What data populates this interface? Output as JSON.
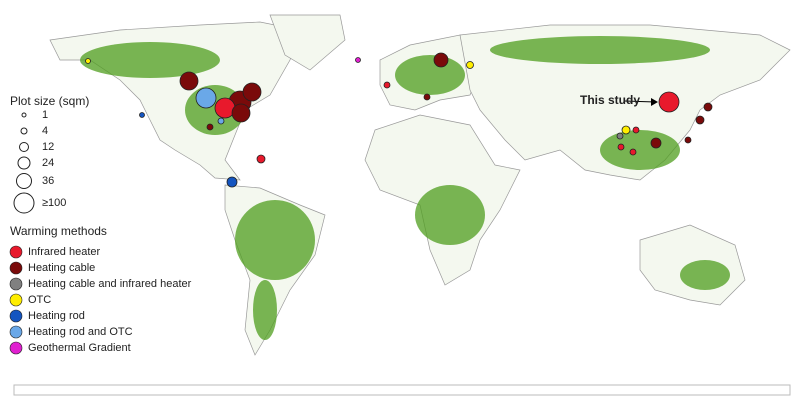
{
  "map": {
    "annotation": "This study",
    "size_legend": {
      "title": "Plot size (sqm)",
      "labels": [
        "1",
        "4",
        "12",
        "24",
        "36",
        "≥100"
      ]
    },
    "method_legend": {
      "title": "Warming methods",
      "items": [
        {
          "label": "Infrared heater",
          "color": "#e8192c"
        },
        {
          "label": "Heating cable",
          "color": "#7a0a0a"
        },
        {
          "label": "Heating cable and infrared heater",
          "color": "#808080"
        },
        {
          "label": "OTC",
          "color": "#ffee00"
        },
        {
          "label": "Heating rod",
          "color": "#1455c0"
        },
        {
          "label": "Heating rod and OTC",
          "color": "#6aa8e8"
        },
        {
          "label": "Geothermal Gradient",
          "color": "#e020d0"
        }
      ]
    }
  }
}
